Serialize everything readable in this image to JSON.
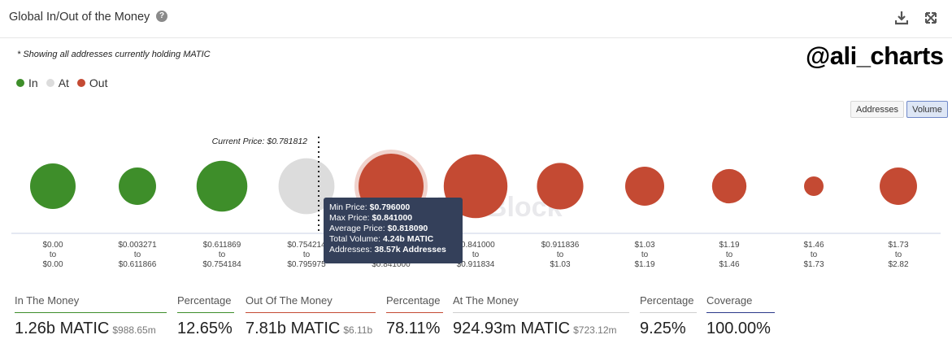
{
  "header": {
    "title": "Global In/Out of the Money",
    "help_icon": "question-circle-icon",
    "download_icon": "download-icon",
    "fullscreen_icon": "expand-icon"
  },
  "note": "* Showing all addresses currently holding MATIC",
  "handle": "@ali_charts",
  "legend": [
    {
      "label": "In",
      "color": "#3e8e2a"
    },
    {
      "label": "At",
      "color": "#dcdcdc"
    },
    {
      "label": "Out",
      "color": "#c44a33"
    }
  ],
  "toggles": {
    "addresses": "Addresses",
    "volume": "Volume",
    "active": "volume"
  },
  "chart_data": {
    "type": "bubble",
    "current_price_label": "Current Price: $0.781812",
    "current_price_index": 3,
    "watermark": "TheBlock",
    "colors": {
      "in": "#3e8e2a",
      "at": "#dcdcdc",
      "out": "#c44a33"
    },
    "clusters": [
      {
        "from": "$0.00",
        "to": "$0.00",
        "status": "in",
        "relative_volume": 0.49
      },
      {
        "from": "$0.003271",
        "to": "$0.611866",
        "status": "in",
        "relative_volume": 0.33
      },
      {
        "from": "$0.611869",
        "to": "$0.754184",
        "status": "in",
        "relative_volume": 0.61
      },
      {
        "from": "$0.754214",
        "to": "$0.795975",
        "status": "at",
        "relative_volume": 0.74
      },
      {
        "from": "$0.796000",
        "to": "$0.841000",
        "status": "out",
        "relative_volume": 1.0,
        "highlighted": true
      },
      {
        "from": "$0.841000",
        "to": "$0.911834",
        "status": "out",
        "relative_volume": 0.96
      },
      {
        "from": "$0.911836",
        "to": "$1.03",
        "status": "out",
        "relative_volume": 0.51
      },
      {
        "from": "$1.03",
        "to": "$1.19",
        "status": "out",
        "relative_volume": 0.36
      },
      {
        "from": "$1.19",
        "to": "$1.46",
        "status": "out",
        "relative_volume": 0.28
      },
      {
        "from": "$1.46",
        "to": "$1.73",
        "status": "out",
        "relative_volume": 0.09
      },
      {
        "from": "$1.73",
        "to": "$2.82",
        "status": "out",
        "relative_volume": 0.33
      }
    ]
  },
  "tooltip": {
    "min_label": "Min Price:",
    "min_value": "$0.796000",
    "max_label": "Max Price:",
    "max_value": "$0.841000",
    "avg_label": "Average Price:",
    "avg_value": "$0.818090",
    "vol_label": "Total Volume:",
    "vol_value": "4.24b MATIC",
    "addr_label": "Addresses:",
    "addr_value": "38.57k Addresses"
  },
  "stats": {
    "in_money": {
      "label": "In The Money",
      "value": "1.26b MATIC",
      "sub": "$988.65m",
      "color": "#3e8e2a"
    },
    "in_pct": {
      "label": "Percentage",
      "value": "12.65%",
      "color": "#3e8e2a"
    },
    "out_money": {
      "label": "Out Of The Money",
      "value": "7.81b MATIC",
      "sub": "$6.11b",
      "color": "#c44a33"
    },
    "out_pct": {
      "label": "Percentage",
      "value": "78.11%",
      "color": "#c44a33"
    },
    "at_money": {
      "label": "At The Money",
      "value": "924.93m MATIC",
      "sub": "$723.12m",
      "color": "#cfcfcf"
    },
    "at_pct": {
      "label": "Percentage",
      "value": "9.25%",
      "color": "#cfcfcf"
    },
    "coverage": {
      "label": "Coverage",
      "value": "100.00%",
      "color": "#2a3a8a"
    }
  }
}
